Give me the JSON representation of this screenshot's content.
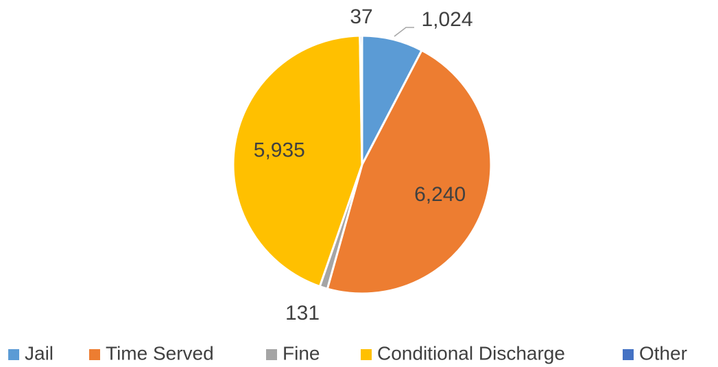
{
  "chart_data": {
    "type": "pie",
    "categories": [
      "Jail",
      "Time Served",
      "Fine",
      "Conditional Discharge",
      "Other"
    ],
    "values": [
      1024,
      6240,
      131,
      5935,
      37
    ],
    "value_labels": [
      "1,024",
      "6,240",
      "131",
      "5,935",
      "37"
    ],
    "colors": [
      "#5b9bd5",
      "#ed7d31",
      "#a5a5a5",
      "#ffc000",
      "#4472c4"
    ],
    "legend": "bottom"
  }
}
